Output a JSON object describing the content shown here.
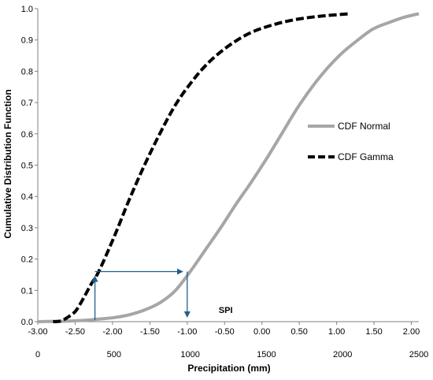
{
  "chart_data": {
    "type": "line",
    "xlabel": "Precipitation (mm)",
    "ylabel": "Cumulative Distribution Function",
    "x_top_axis": {
      "label": "",
      "range": [
        -3.0,
        2.1
      ],
      "ticks": [
        -3.0,
        -2.5,
        -2.0,
        -1.5,
        -1.0,
        -0.5,
        0.0,
        0.5,
        1.0,
        1.5,
        2.0
      ],
      "tick_labels": [
        "-3.00",
        "-2.50",
        "-2.00",
        "-1.50",
        "-1.00",
        "-0.50",
        "0.00",
        "0.50",
        "1.00",
        "1.50",
        "2.00"
      ]
    },
    "x_bottom_axis": {
      "label": "Precipitation (mm)",
      "range": [
        0,
        2500
      ],
      "ticks": [
        0,
        500,
        1000,
        1500,
        2000,
        2500
      ],
      "tick_labels": [
        "0",
        "500",
        "1000",
        "1500",
        "2000",
        "2500"
      ]
    },
    "y_axis": {
      "range": [
        0,
        1.0
      ],
      "ticks": [
        0,
        0.1,
        0.2,
        0.3,
        0.4,
        0.5,
        0.6,
        0.7,
        0.8,
        0.9,
        1.0
      ],
      "tick_labels": [
        "0.0",
        "0.1",
        "0.2",
        "0.3",
        "0.4",
        "0.5",
        "0.6",
        "0.7",
        "0.8",
        "0.9",
        "1.0"
      ]
    },
    "grid": false,
    "legend_position": "right",
    "series": [
      {
        "name": "CDF Normal",
        "style": "solid",
        "color": "#a6a6a6",
        "x_mm": [
          0,
          100,
          200,
          300,
          400,
          500,
          600,
          700,
          800,
          900,
          1000,
          1100,
          1200,
          1300,
          1400,
          1500,
          1600,
          1700,
          1800,
          1900,
          2000,
          2100,
          2200,
          2300,
          2400,
          2500
        ],
        "y": [
          0.0,
          0.001,
          0.002,
          0.004,
          0.008,
          0.013,
          0.022,
          0.037,
          0.06,
          0.098,
          0.16,
          0.23,
          0.3,
          0.375,
          0.445,
          0.52,
          0.6,
          0.68,
          0.75,
          0.81,
          0.86,
          0.9,
          0.935,
          0.955,
          0.972,
          0.984
        ]
      },
      {
        "name": "CDF Gamma",
        "style": "dashed",
        "color": "#000000",
        "x_mm": [
          100,
          150,
          200,
          250,
          300,
          350,
          400,
          500,
          600,
          700,
          800,
          900,
          1000,
          1100,
          1200,
          1300,
          1400,
          1500,
          1600,
          1700,
          1800,
          1900,
          2000,
          2050
        ],
        "y": [
          0.0,
          0.002,
          0.015,
          0.035,
          0.075,
          0.12,
          0.16,
          0.27,
          0.39,
          0.5,
          0.6,
          0.69,
          0.76,
          0.818,
          0.862,
          0.897,
          0.924,
          0.942,
          0.956,
          0.966,
          0.973,
          0.978,
          0.982,
          0.984
        ]
      }
    ],
    "annotations": {
      "spi_label": "SPI",
      "arrow_precip_mm": 375,
      "arrow_cdf": 0.16,
      "arrow_spi": -1.0,
      "color": "#1f5f8b"
    }
  }
}
